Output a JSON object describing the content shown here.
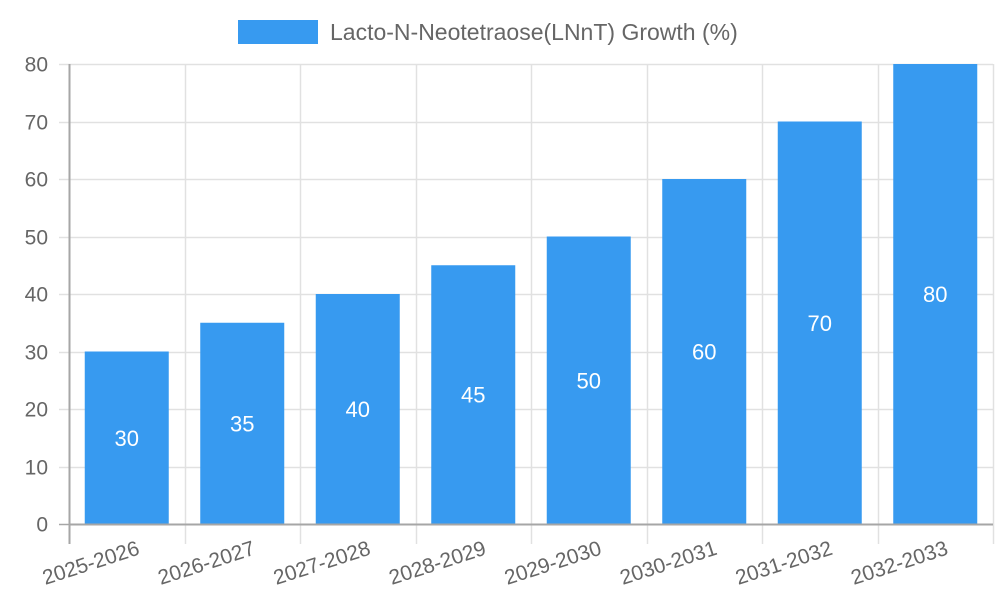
{
  "chart_data": {
    "type": "bar",
    "title": "",
    "categories": [
      "2025-2026",
      "2026-2027",
      "2027-2028",
      "2028-2029",
      "2029-2030",
      "2030-2031",
      "2031-2032",
      "2032-2033"
    ],
    "series": [
      {
        "name": "Lacto-N-Neotetraose(LNnT) Growth (%)",
        "values": [
          30,
          35,
          40,
          45,
          50,
          60,
          70,
          80
        ],
        "color": "#379af0"
      }
    ],
    "xlabel": "",
    "ylabel": "",
    "ylim": [
      0,
      80
    ],
    "yticks": [
      0,
      10,
      20,
      30,
      40,
      50,
      60,
      70,
      80
    ],
    "grid": true,
    "legend_position": "top",
    "data_labels": true
  },
  "legend": {
    "label": "Lacto-N-Neotetraose(LNnT) Growth (%)"
  },
  "colors": {
    "bar": "#379af0",
    "grid": "#e1e1e1",
    "axis": "#a6a6a6",
    "tick_text": "#666666",
    "data_label": "#ffffff"
  }
}
